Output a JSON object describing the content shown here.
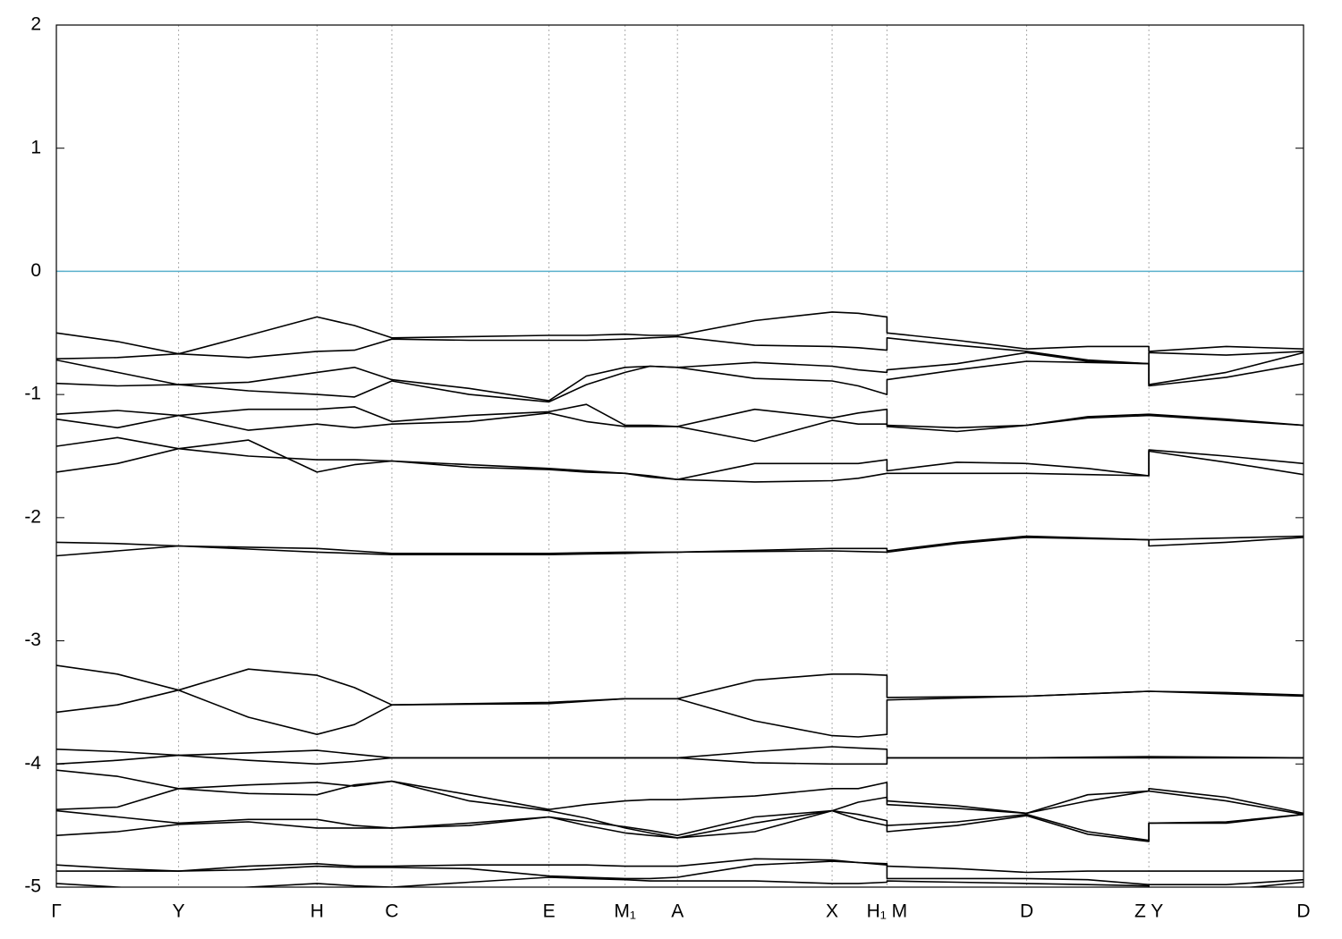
{
  "chart_data": {
    "type": "line",
    "color": "#000000",
    "hline": {
      "value": 0,
      "color": "#5ab0cc"
    },
    "grid": true,
    "xlim": [
      0,
      1
    ],
    "ylim": [
      -5,
      2
    ],
    "yticks": [
      -5,
      -4,
      -3,
      -2,
      -1,
      0,
      1,
      2
    ],
    "xticks": [
      {
        "value": 0,
        "label": "Γ"
      },
      {
        "value": 0.098,
        "label": "Y"
      },
      {
        "value": 0.209,
        "label": "H"
      },
      {
        "value": 0.269,
        "label": "C"
      },
      {
        "value": 0.395,
        "label": "E"
      },
      {
        "value": 0.456,
        "label": "M₁"
      },
      {
        "value": 0.498,
        "label": "A"
      },
      {
        "value": 0.622,
        "label": "X"
      },
      {
        "value": 0.666,
        "label": "H₁ M"
      },
      {
        "value": 0.778,
        "label": "D"
      },
      {
        "value": 0.876,
        "label": "Z Y"
      },
      {
        "value": 1,
        "label": "D"
      }
    ],
    "x": [
      0,
      0.049,
      0.098,
      0.154,
      0.209,
      0.239,
      0.269,
      0.331,
      0.395,
      0.425,
      0.456,
      0.476,
      0.498,
      0.56,
      0.622,
      0.643,
      0.666,
      0.666,
      0.722,
      0.778,
      0.827,
      0.876,
      0.876,
      0.938,
      1
    ],
    "series": [
      {
        "values": [
          -0.5,
          -0.57,
          -0.67,
          -0.52,
          -0.37,
          -0.44,
          -0.54,
          -0.53,
          -0.52,
          -0.52,
          -0.51,
          -0.52,
          -0.52,
          -0.4,
          -0.33,
          -0.34,
          -0.37,
          -0.5,
          -0.56,
          -0.63,
          -0.61,
          -0.61,
          -0.65,
          -0.61,
          -0.63
        ]
      },
      {
        "values": [
          -0.71,
          -0.7,
          -0.67,
          -0.7,
          -0.65,
          -0.64,
          -0.55,
          -0.56,
          -0.56,
          -0.56,
          -0.55,
          -0.54,
          -0.53,
          -0.6,
          -0.61,
          -0.62,
          -0.64,
          -0.54,
          -0.6,
          -0.65,
          -0.72,
          -0.75,
          -0.66,
          -0.68,
          -0.65
        ]
      },
      {
        "values": [
          -0.72,
          -0.82,
          -0.92,
          -0.9,
          -0.82,
          -0.78,
          -0.88,
          -0.95,
          -1.05,
          -0.85,
          -0.78,
          -0.77,
          -0.78,
          -0.74,
          -0.77,
          -0.8,
          -0.82,
          -0.8,
          -0.75,
          -0.66,
          -0.73,
          -0.75,
          -0.92,
          -0.82,
          -0.66
        ]
      },
      {
        "values": [
          -0.91,
          -0.93,
          -0.92,
          -0.97,
          -1.0,
          -1.02,
          -0.89,
          -1.0,
          -1.06,
          -0.92,
          -0.82,
          -0.77,
          -0.78,
          -0.87,
          -0.89,
          -0.93,
          -1.0,
          -0.88,
          -0.8,
          -0.73,
          -0.74,
          -0.75,
          -0.93,
          -0.86,
          -0.75
        ]
      },
      {
        "values": [
          -1.16,
          -1.13,
          -1.17,
          -1.12,
          -1.12,
          -1.1,
          -1.22,
          -1.17,
          -1.14,
          -1.08,
          -1.25,
          -1.25,
          -1.26,
          -1.12,
          -1.19,
          -1.15,
          -1.12,
          -1.25,
          -1.27,
          -1.25,
          -1.18,
          -1.16,
          -1.16,
          -1.2,
          -1.25
        ]
      },
      {
        "values": [
          -1.2,
          -1.27,
          -1.17,
          -1.29,
          -1.24,
          -1.27,
          -1.24,
          -1.22,
          -1.15,
          -1.22,
          -1.26,
          -1.26,
          -1.26,
          -1.38,
          -1.21,
          -1.24,
          -1.24,
          -1.26,
          -1.3,
          -1.25,
          -1.19,
          -1.17,
          -1.17,
          -1.21,
          -1.25
        ]
      },
      {
        "values": [
          -1.42,
          -1.35,
          -1.44,
          -1.5,
          -1.53,
          -1.53,
          -1.54,
          -1.57,
          -1.6,
          -1.62,
          -1.64,
          -1.67,
          -1.69,
          -1.56,
          -1.56,
          -1.56,
          -1.53,
          -1.62,
          -1.55,
          -1.56,
          -1.6,
          -1.66,
          -1.45,
          -1.5,
          -1.56
        ]
      },
      {
        "values": [
          -1.63,
          -1.56,
          -1.44,
          -1.37,
          -1.63,
          -1.57,
          -1.54,
          -1.59,
          -1.61,
          -1.63,
          -1.64,
          -1.66,
          -1.69,
          -1.71,
          -1.7,
          -1.68,
          -1.64,
          -1.64,
          -1.64,
          -1.64,
          -1.65,
          -1.66,
          -1.46,
          -1.55,
          -1.65
        ]
      },
      {
        "values": [
          -2.2,
          -2.21,
          -2.23,
          -2.24,
          -2.25,
          -2.27,
          -2.29,
          -2.29,
          -2.29,
          -2.285,
          -2.28,
          -2.28,
          -2.28,
          -2.265,
          -2.25,
          -2.25,
          -2.25,
          -2.27,
          -2.2,
          -2.15,
          -2.165,
          -2.18,
          -2.18,
          -2.165,
          -2.15
        ]
      },
      {
        "values": [
          -2.31,
          -2.27,
          -2.23,
          -2.255,
          -2.28,
          -2.29,
          -2.3,
          -2.3,
          -2.3,
          -2.295,
          -2.29,
          -2.285,
          -2.28,
          -2.275,
          -2.27,
          -2.275,
          -2.28,
          -2.28,
          -2.21,
          -2.16,
          -2.17,
          -2.18,
          -2.23,
          -2.2,
          -2.16
        ]
      },
      {
        "values": [
          -3.2,
          -3.27,
          -3.4,
          -3.23,
          -3.28,
          -3.38,
          -3.52,
          -3.51,
          -3.5,
          -3.485,
          -3.47,
          -3.47,
          -3.47,
          -3.32,
          -3.27,
          -3.27,
          -3.28,
          -3.46,
          -3.455,
          -3.45,
          -3.43,
          -3.41,
          -3.41,
          -3.42,
          -3.44
        ]
      },
      {
        "values": [
          -3.58,
          -3.52,
          -3.4,
          -3.62,
          -3.76,
          -3.68,
          -3.52,
          -3.515,
          -3.51,
          -3.49,
          -3.47,
          -3.47,
          -3.47,
          -3.65,
          -3.77,
          -3.78,
          -3.76,
          -3.48,
          -3.465,
          -3.45,
          -3.43,
          -3.41,
          -3.41,
          -3.43,
          -3.45
        ]
      },
      {
        "values": [
          -3.88,
          -3.9,
          -3.93,
          -3.91,
          -3.89,
          -3.92,
          -3.95,
          -3.95,
          -3.95,
          -3.95,
          -3.95,
          -3.95,
          -3.95,
          -3.9,
          -3.86,
          -3.87,
          -3.88,
          -3.95,
          -3.95,
          -3.95,
          -3.945,
          -3.94,
          -3.94,
          -3.945,
          -3.95
        ]
      },
      {
        "values": [
          -4.0,
          -3.97,
          -3.93,
          -3.97,
          -4.0,
          -3.98,
          -3.95,
          -3.95,
          -3.95,
          -3.95,
          -3.95,
          -3.95,
          -3.95,
          -3.99,
          -4.0,
          -4.0,
          -4.0,
          -3.95,
          -3.95,
          -3.95,
          -3.95,
          -3.95,
          -3.95,
          -3.95,
          -3.95
        ]
      },
      {
        "values": [
          -4.05,
          -4.1,
          -4.2,
          -4.17,
          -4.15,
          -4.18,
          -4.14,
          -4.25,
          -4.37,
          -4.33,
          -4.3,
          -4.29,
          -4.29,
          -4.26,
          -4.2,
          -4.2,
          -4.15,
          -4.3,
          -4.34,
          -4.4,
          -4.25,
          -4.22,
          -4.2,
          -4.27,
          -4.4
        ]
      },
      {
        "values": [
          -4.37,
          -4.35,
          -4.2,
          -4.24,
          -4.25,
          -4.17,
          -4.14,
          -4.3,
          -4.38,
          -4.44,
          -4.52,
          -4.56,
          -4.6,
          -4.48,
          -4.38,
          -4.31,
          -4.27,
          -4.33,
          -4.36,
          -4.4,
          -4.3,
          -4.22,
          -4.22,
          -4.3,
          -4.41
        ]
      },
      {
        "values": [
          -4.38,
          -4.43,
          -4.48,
          -4.45,
          -4.45,
          -4.5,
          -4.52,
          -4.48,
          -4.43,
          -4.47,
          -4.51,
          -4.54,
          -4.58,
          -4.43,
          -4.38,
          -4.41,
          -4.46,
          -4.5,
          -4.47,
          -4.41,
          -4.55,
          -4.62,
          -4.48,
          -4.48,
          -4.41
        ]
      },
      {
        "values": [
          -4.58,
          -4.55,
          -4.49,
          -4.47,
          -4.52,
          -4.52,
          -4.52,
          -4.5,
          -4.43,
          -4.5,
          -4.56,
          -4.58,
          -4.6,
          -4.55,
          -4.38,
          -4.45,
          -4.5,
          -4.55,
          -4.5,
          -4.42,
          -4.57,
          -4.63,
          -4.48,
          -4.47,
          -4.41
        ]
      },
      {
        "values": [
          -4.82,
          -4.85,
          -4.87,
          -4.83,
          -4.81,
          -4.83,
          -4.83,
          -4.82,
          -4.82,
          -4.82,
          -4.83,
          -4.83,
          -4.83,
          -4.77,
          -4.78,
          -4.8,
          -4.81,
          -4.83,
          -4.85,
          -4.88,
          -4.87,
          -4.87,
          -4.87,
          -4.87,
          -4.87
        ]
      },
      {
        "values": [
          -4.87,
          -4.87,
          -4.87,
          -4.86,
          -4.83,
          -4.84,
          -4.84,
          -4.85,
          -4.91,
          -4.92,
          -4.93,
          -4.93,
          -4.92,
          -4.82,
          -4.79,
          -4.8,
          -4.82,
          -4.93,
          -4.93,
          -4.93,
          -4.94,
          -4.98,
          -4.98,
          -4.98,
          -4.94
        ]
      },
      {
        "values": [
          -4.97,
          -5.0,
          -5.03,
          -5.0,
          -4.97,
          -4.99,
          -5.0,
          -4.96,
          -4.92,
          -4.93,
          -4.94,
          -4.95,
          -4.95,
          -4.95,
          -4.97,
          -4.97,
          -4.96,
          -4.95,
          -4.96,
          -4.97,
          -4.98,
          -4.99,
          -5.02,
          -5.02,
          -4.96
        ]
      }
    ]
  }
}
